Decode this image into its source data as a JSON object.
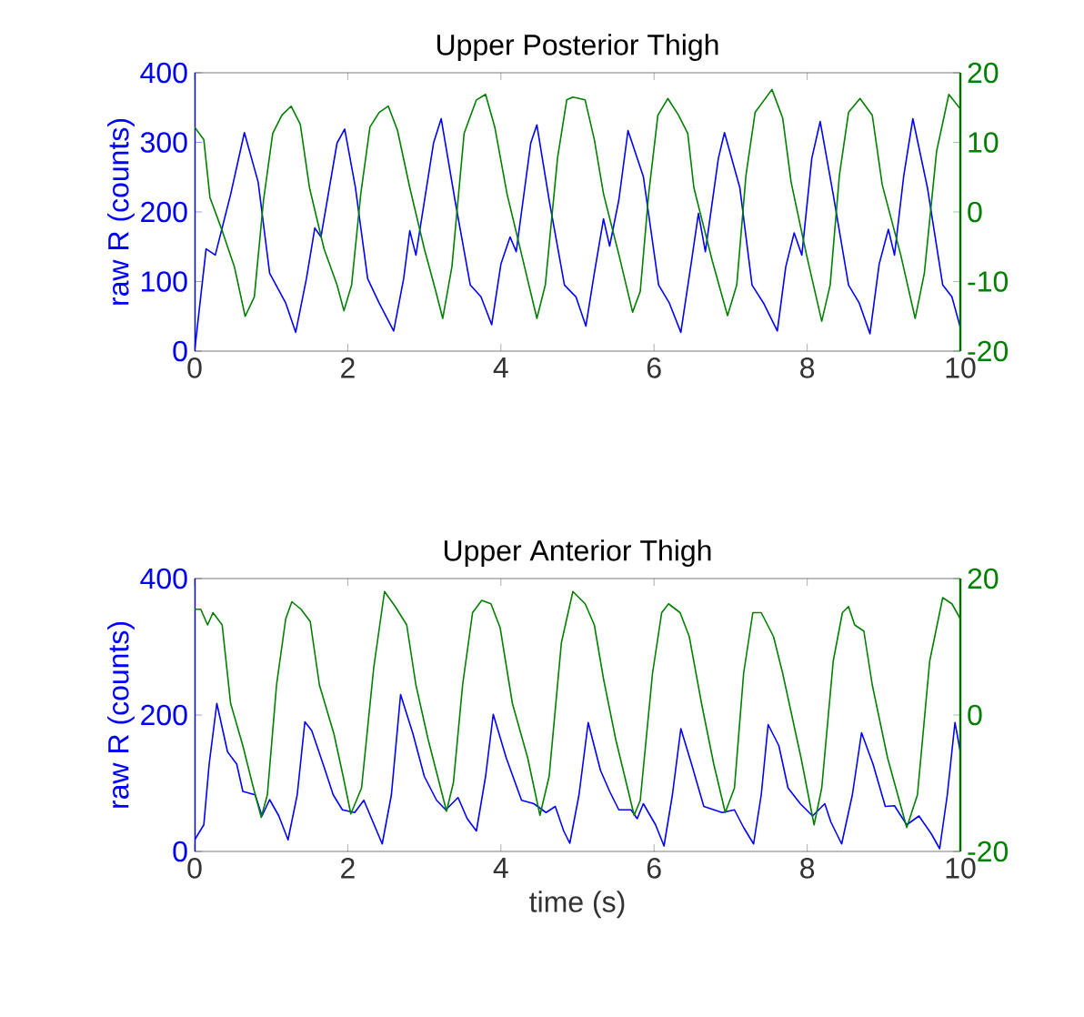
{
  "chart_data": [
    {
      "type": "line",
      "title": "Upper Posterior Thigh",
      "ylabel": "raw R (counts)",
      "xlim": [
        0,
        10
      ],
      "xticks": [
        0,
        2,
        4,
        6,
        8,
        10
      ],
      "ylim": [
        0,
        400
      ],
      "yticks": [
        0,
        100,
        200,
        300,
        400
      ],
      "y2lim": [
        -20,
        20
      ],
      "y2ticks": [
        -20,
        -10,
        0,
        10,
        20
      ],
      "series": [
        {
          "color": "#0000ff",
          "x": [
            0,
            0.15,
            0.27,
            0.47,
            0.65,
            0.83,
            0.98,
            1.19,
            1.32,
            1.46,
            1.57,
            1.65,
            1.86,
            1.96,
            2.1,
            2.26,
            2.41,
            2.6,
            2.73,
            2.81,
            2.89,
            3.12,
            3.22,
            3.4,
            3.6,
            3.74,
            3.88,
            4.0,
            4.12,
            4.2,
            4.39,
            4.47,
            4.63,
            4.83,
            4.98,
            5.11,
            5.22,
            5.34,
            5.42,
            5.54,
            5.66,
            5.86,
            6.06,
            6.2,
            6.35,
            6.49,
            6.58,
            6.67,
            6.84,
            6.92,
            7.12,
            7.28,
            7.43,
            7.61,
            7.72,
            7.83,
            7.93,
            8.06,
            8.17,
            8.34,
            8.54,
            8.68,
            8.82,
            8.94,
            9.06,
            9.14,
            9.26,
            9.38,
            9.57,
            9.77,
            9.89,
            10
          ],
          "values": [
            0,
            147,
            138,
            225,
            314,
            243,
            112,
            69,
            27,
            104,
            177,
            164,
            299,
            319,
            235,
            104,
            69,
            29,
            104,
            173,
            138,
            299,
            334,
            217,
            95,
            78,
            38,
            125,
            164,
            143,
            299,
            325,
            217,
            95,
            78,
            36,
            112,
            190,
            151,
            217,
            317,
            251,
            95,
            69,
            27,
            130,
            198,
            143,
            277,
            314,
            235,
            95,
            69,
            29,
            121,
            170,
            138,
            277,
            330,
            225,
            95,
            69,
            25,
            125,
            175,
            138,
            251,
            334,
            235,
            95,
            78,
            34
          ]
        },
        {
          "color": "#008000",
          "axis": "y2",
          "x": [
            0,
            0.12,
            0.2,
            0.36,
            0.52,
            0.66,
            0.78,
            0.9,
            1.02,
            1.14,
            1.26,
            1.38,
            1.5,
            1.69,
            1.86,
            1.95,
            2.05,
            2.17,
            2.29,
            2.41,
            2.53,
            2.65,
            2.81,
            3.0,
            3.15,
            3.24,
            3.36,
            3.52,
            3.68,
            3.8,
            3.92,
            4.08,
            4.27,
            4.47,
            4.58,
            4.74,
            4.86,
            4.94,
            5.1,
            5.22,
            5.34,
            5.54,
            5.72,
            5.82,
            5.93,
            6.05,
            6.18,
            6.32,
            6.44,
            6.52,
            6.76,
            6.96,
            7.08,
            7.2,
            7.32,
            7.54,
            7.68,
            7.79,
            7.99,
            8.19,
            8.3,
            8.42,
            8.54,
            8.69,
            8.85,
            8.98,
            9.22,
            9.41,
            9.53,
            9.69,
            9.85,
            10
          ],
          "values": [
            12.2,
            10.4,
            2.1,
            -2.7,
            -7.9,
            -15.0,
            -12.2,
            1.7,
            11.3,
            13.9,
            15.2,
            12.6,
            3.5,
            -5.3,
            -10.5,
            -14.2,
            -10.5,
            2.6,
            12.2,
            14.3,
            15.2,
            11.7,
            3.5,
            -5.3,
            -11.4,
            -15.3,
            -7.9,
            11.3,
            16.1,
            16.9,
            12.2,
            2.6,
            -6.1,
            -15.3,
            -10.5,
            7.8,
            16.1,
            16.5,
            16.1,
            10.4,
            2.6,
            -6.1,
            -14.4,
            -11.4,
            2.6,
            13.9,
            16.3,
            13.9,
            11.3,
            3.5,
            -7.0,
            -14.9,
            -10.5,
            5.2,
            14.3,
            17.6,
            13.5,
            4.3,
            -6.1,
            -15.7,
            -10.5,
            5.2,
            14.3,
            16.3,
            13.9,
            3.9,
            -6.1,
            -15.3,
            -8.8,
            8.7,
            16.9,
            14.8
          ]
        }
      ]
    },
    {
      "type": "line",
      "title": "Upper Anterior Thigh",
      "xlabel": "time (s)",
      "ylabel": "raw R (counts)",
      "xlim": [
        0,
        10
      ],
      "xticks": [
        0,
        2,
        4,
        6,
        8,
        10
      ],
      "ylim": [
        0,
        400
      ],
      "yticks": [
        0,
        200,
        400
      ],
      "y2lim": [
        -20,
        20
      ],
      "y2ticks": [
        -20,
        0,
        20
      ],
      "series": [
        {
          "color": "#0000ff",
          "x": [
            0,
            0.12,
            0.19,
            0.29,
            0.43,
            0.55,
            0.63,
            0.79,
            0.88,
            0.98,
            1.1,
            1.22,
            1.34,
            1.44,
            1.53,
            1.69,
            1.81,
            1.93,
            2.09,
            2.21,
            2.33,
            2.45,
            2.57,
            2.69,
            2.85,
            3.0,
            3.16,
            3.28,
            3.44,
            3.56,
            3.68,
            3.8,
            3.9,
            4.07,
            4.27,
            4.43,
            4.59,
            4.71,
            4.82,
            4.9,
            5.02,
            5.14,
            5.3,
            5.42,
            5.54,
            5.7,
            5.78,
            5.86,
            6.02,
            6.13,
            6.24,
            6.35,
            6.49,
            6.65,
            6.89,
            7.05,
            7.17,
            7.3,
            7.4,
            7.49,
            7.63,
            7.75,
            7.91,
            8.07,
            8.23,
            8.31,
            8.45,
            8.59,
            8.71,
            8.86,
            9.02,
            9.14,
            9.3,
            9.46,
            9.62,
            9.73,
            9.83,
            9.93,
            10
          ],
          "values": [
            17,
            39,
            128,
            217,
            146,
            128,
            88,
            83,
            52,
            76,
            52,
            17,
            83,
            190,
            177,
            124,
            83,
            61,
            57,
            75,
            43,
            11,
            83,
            230,
            173,
            110,
            75,
            61,
            79,
            48,
            30,
            110,
            201,
            137,
            75,
            70,
            57,
            66,
            30,
            12,
            83,
            189,
            119,
            88,
            61,
            61,
            48,
            70,
            39,
            8,
            83,
            180,
            128,
            66,
            57,
            61,
            35,
            11,
            83,
            186,
            155,
            93,
            70,
            52,
            70,
            43,
            11,
            83,
            174,
            128,
            66,
            67,
            39,
            52,
            26,
            4,
            83,
            189,
            146
          ]
        },
        {
          "color": "#008000",
          "axis": "y2",
          "x": [
            0,
            0.08,
            0.17,
            0.24,
            0.36,
            0.47,
            0.63,
            0.75,
            0.87,
            0.95,
            1.07,
            1.19,
            1.27,
            1.39,
            1.51,
            1.63,
            1.82,
            1.94,
            2.04,
            2.18,
            2.34,
            2.48,
            2.62,
            2.77,
            2.89,
            3.05,
            3.29,
            3.38,
            3.5,
            3.63,
            3.75,
            3.87,
            3.99,
            4.15,
            4.35,
            4.51,
            4.63,
            4.79,
            4.94,
            5.1,
            5.22,
            5.34,
            5.5,
            5.74,
            5.82,
            5.98,
            6.1,
            6.19,
            6.34,
            6.46,
            6.62,
            6.78,
            6.93,
            7.05,
            7.17,
            7.29,
            7.4,
            7.56,
            7.68,
            7.92,
            8.09,
            8.19,
            8.34,
            8.46,
            8.54,
            8.62,
            8.74,
            8.85,
            9.05,
            9.3,
            9.44,
            9.6,
            9.77,
            9.89,
            10
          ],
          "values": [
            15.5,
            15.5,
            13.2,
            15.0,
            13.2,
            1.7,
            -4.5,
            -9.9,
            -15.0,
            -11.7,
            4.4,
            14.1,
            16.6,
            15.5,
            13.7,
            4.4,
            -2.8,
            -9.0,
            -14.5,
            -10.7,
            7.0,
            18.1,
            15.9,
            13.2,
            4.4,
            -3.6,
            -14.1,
            -9.9,
            4.4,
            15.0,
            16.8,
            16.3,
            12.8,
            1.7,
            -6.3,
            -14.7,
            -9.0,
            10.6,
            18.1,
            16.3,
            13.2,
            5.3,
            -3.6,
            -14.7,
            -12.5,
            6.1,
            15.0,
            16.3,
            15.0,
            11.5,
            1.7,
            -7.2,
            -14.3,
            -10.7,
            6.1,
            15.0,
            15.0,
            11.5,
            6.1,
            -6.3,
            -16.1,
            -10.7,
            7.9,
            15.0,
            15.9,
            13.2,
            12.3,
            4.4,
            -6.3,
            -16.5,
            -11.7,
            7.9,
            17.2,
            16.3,
            14.1
          ]
        }
      ]
    }
  ]
}
